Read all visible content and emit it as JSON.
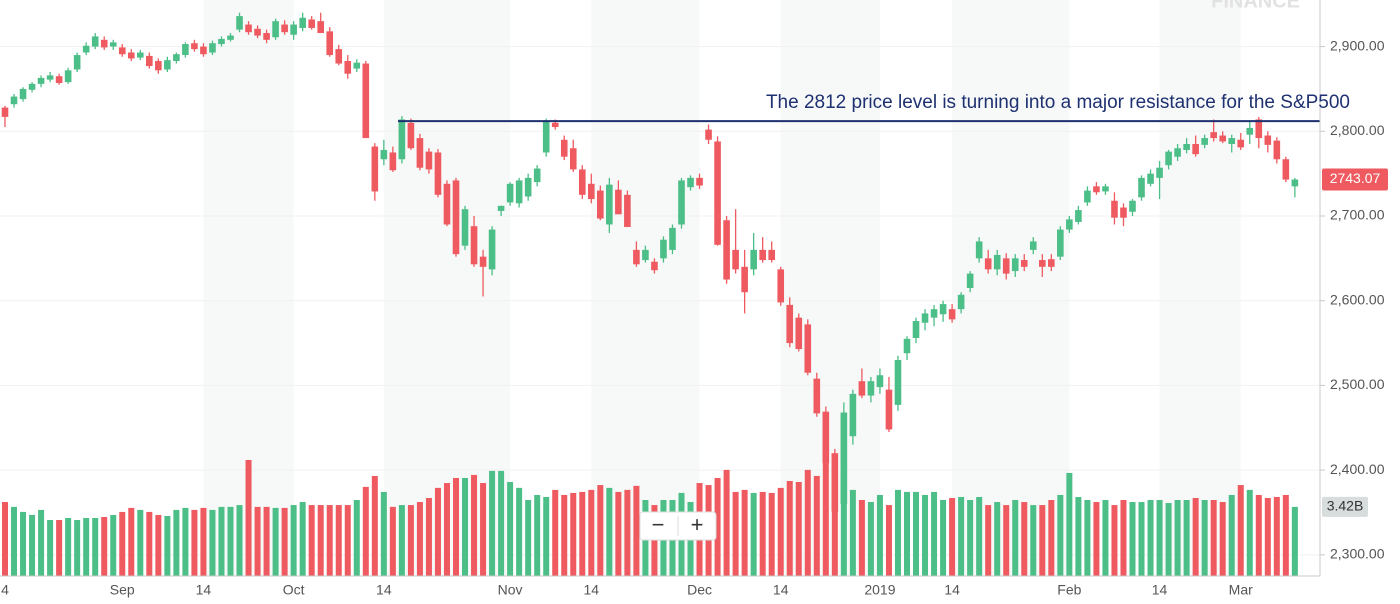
{
  "chart_data": {
    "type": "candlestick",
    "watermark": "FINANCE",
    "annotation": {
      "text": "The 2812 price level is turning into a major resistance for the S&P500",
      "value": 2812
    },
    "categories": [
      "4",
      null,
      null,
      null,
      null,
      null,
      null,
      null,
      null,
      null,
      null,
      null,
      null,
      "Sep",
      null,
      null,
      null,
      null,
      null,
      null,
      null,
      null,
      "14",
      null,
      null,
      null,
      null,
      null,
      null,
      null,
      null,
      null,
      "Oct",
      null,
      null,
      null,
      null,
      null,
      null,
      null,
      null,
      null,
      "14",
      null,
      null,
      null,
      null,
      null,
      null,
      null,
      null,
      null,
      null,
      null,
      null,
      null,
      "Nov",
      null,
      null,
      null,
      null,
      null,
      null,
      null,
      null,
      "14",
      null,
      null,
      null,
      null,
      null,
      null,
      null,
      null,
      null,
      null,
      null,
      "Dec",
      null,
      null,
      null,
      null,
      null,
      null,
      null,
      null,
      "14",
      null,
      null,
      null,
      null,
      null,
      null,
      null,
      null,
      null,
      null,
      "2019",
      null,
      null,
      null,
      null,
      null,
      null,
      null,
      "14",
      null,
      null,
      null,
      null,
      null,
      null,
      null,
      null,
      null,
      null,
      null,
      null,
      "Feb",
      null,
      null,
      null,
      null,
      null,
      null,
      null,
      null,
      null,
      "14",
      null,
      null,
      null,
      null,
      null,
      null,
      null,
      null,
      "Mar",
      null,
      null,
      null,
      null,
      null,
      null
    ],
    "open": [
      2828,
      2832,
      2838,
      2849,
      2856,
      2861,
      2865,
      2858,
      2873,
      2893,
      2900,
      2908,
      2900,
      2899,
      2893,
      2887,
      2889,
      2883,
      2873,
      2883,
      2890,
      2904,
      2900,
      2893,
      2903,
      2908,
      2920,
      2926,
      2921,
      2916,
      2911,
      2926,
      2914,
      2922,
      2932,
      2930,
      2918,
      2897,
      2883,
      2874,
      2880,
      2782,
      2767,
      2775,
      2767,
      2810,
      2792,
      2776,
      2775,
      2738,
      2742,
      2665,
      2688,
      2652,
      2637,
      2706,
      2716,
      2715,
      2723,
      2740,
      2775,
      2810,
      2790,
      2780,
      2755,
      2738,
      2730,
      2690,
      2731,
      2725,
      2660,
      2648,
      2646,
      2650,
      2660,
      2690,
      2734,
      2745,
      2802,
      2788,
      2695,
      2660,
      2640,
      2637,
      2660,
      2660,
      2637,
      2595,
      2580,
      2572,
      2508,
      2469,
      2420,
      2360,
      2440,
      2505,
      2488,
      2498,
      2495,
      2477,
      2538,
      2556,
      2574,
      2580,
      2584,
      2590,
      2590,
      2615,
      2650,
      2650,
      2637,
      2650,
      2635,
      2648,
      2660,
      2648,
      2649,
      2652,
      2684,
      2693,
      2716,
      2735,
      2729,
      2718,
      2710,
      2705,
      2722,
      2738,
      2745,
      2760,
      2770,
      2778,
      2785,
      2784,
      2799,
      2795,
      2785,
      2790,
      2796,
      2814,
      2795,
      2789,
      2767,
      2735
    ],
    "high": [
      2830,
      2844,
      2852,
      2858,
      2866,
      2870,
      2868,
      2875,
      2893,
      2905,
      2916,
      2912,
      2908,
      2903,
      2897,
      2896,
      2893,
      2886,
      2888,
      2893,
      2905,
      2908,
      2904,
      2907,
      2912,
      2916,
      2940,
      2930,
      2925,
      2920,
      2933,
      2931,
      2930,
      2940,
      2936,
      2940,
      2923,
      2902,
      2890,
      2885,
      2883,
      2786,
      2790,
      2782,
      2818,
      2815,
      2797,
      2780,
      2779,
      2742,
      2745,
      2712,
      2700,
      2660,
      2688,
      2712,
      2740,
      2745,
      2750,
      2760,
      2815,
      2814,
      2795,
      2790,
      2760,
      2750,
      2736,
      2745,
      2742,
      2730,
      2670,
      2665,
      2650,
      2676,
      2690,
      2745,
      2748,
      2750,
      2808,
      2794,
      2700,
      2708,
      2660,
      2680,
      2675,
      2670,
      2640,
      2604,
      2585,
      2578,
      2515,
      2475,
      2425,
      2480,
      2495,
      2520,
      2510,
      2520,
      2510,
      2535,
      2558,
      2580,
      2590,
      2595,
      2600,
      2596,
      2610,
      2635,
      2675,
      2660,
      2660,
      2656,
      2655,
      2655,
      2675,
      2655,
      2655,
      2688,
      2700,
      2712,
      2735,
      2740,
      2738,
      2728,
      2715,
      2720,
      2748,
      2755,
      2765,
      2778,
      2785,
      2792,
      2795,
      2796,
      2814,
      2800,
      2796,
      2798,
      2812,
      2817,
      2800,
      2793,
      2770,
      2745
    ],
    "low": [
      2805,
      2828,
      2835,
      2846,
      2852,
      2858,
      2855,
      2856,
      2870,
      2890,
      2897,
      2896,
      2896,
      2888,
      2883,
      2884,
      2874,
      2868,
      2870,
      2880,
      2887,
      2894,
      2888,
      2890,
      2900,
      2906,
      2917,
      2914,
      2910,
      2904,
      2908,
      2914,
      2908,
      2918,
      2920,
      2916,
      2888,
      2878,
      2862,
      2870,
      2792,
      2718,
      2760,
      2752,
      2762,
      2778,
      2754,
      2750,
      2722,
      2688,
      2652,
      2660,
      2640,
      2605,
      2630,
      2700,
      2712,
      2710,
      2718,
      2735,
      2770,
      2802,
      2766,
      2752,
      2720,
      2715,
      2695,
      2680,
      2705,
      2690,
      2640,
      2645,
      2632,
      2645,
      2655,
      2685,
      2730,
      2732,
      2785,
      2665,
      2620,
      2632,
      2585,
      2630,
      2645,
      2645,
      2594,
      2545,
      2540,
      2512,
      2463,
      2395,
      2346,
      2350,
      2430,
      2485,
      2480,
      2490,
      2445,
      2470,
      2530,
      2550,
      2565,
      2570,
      2575,
      2574,
      2585,
      2610,
      2645,
      2632,
      2630,
      2625,
      2628,
      2635,
      2655,
      2628,
      2635,
      2648,
      2680,
      2690,
      2712,
      2725,
      2725,
      2690,
      2688,
      2700,
      2718,
      2735,
      2720,
      2755,
      2765,
      2774,
      2770,
      2780,
      2788,
      2786,
      2775,
      2778,
      2785,
      2780,
      2775,
      2762,
      2740,
      2722
    ],
    "close": [
      2817,
      2841,
      2850,
      2856,
      2863,
      2866,
      2857,
      2872,
      2890,
      2901,
      2912,
      2899,
      2905,
      2891,
      2886,
      2893,
      2877,
      2872,
      2884,
      2891,
      2903,
      2897,
      2891,
      2904,
      2909,
      2913,
      2936,
      2917,
      2913,
      2908,
      2930,
      2917,
      2926,
      2934,
      2922,
      2916,
      2890,
      2880,
      2868,
      2881,
      2792,
      2729,
      2778,
      2754,
      2814,
      2780,
      2757,
      2755,
      2725,
      2690,
      2655,
      2708,
      2643,
      2640,
      2684,
      2712,
      2738,
      2742,
      2745,
      2756,
      2811,
      2805,
      2770,
      2755,
      2725,
      2720,
      2697,
      2737,
      2702,
      2687,
      2643,
      2660,
      2636,
      2672,
      2686,
      2742,
      2745,
      2736,
      2790,
      2666,
      2625,
      2637,
      2610,
      2660,
      2648,
      2648,
      2598,
      2550,
      2543,
      2515,
      2467,
      2408,
      2351,
      2468,
      2490,
      2488,
      2505,
      2512,
      2448,
      2530,
      2555,
      2576,
      2585,
      2590,
      2596,
      2578,
      2607,
      2632,
      2670,
      2637,
      2654,
      2632,
      2650,
      2640,
      2670,
      2640,
      2640,
      2684,
      2696,
      2707,
      2730,
      2728,
      2735,
      2698,
      2698,
      2718,
      2745,
      2750,
      2757,
      2776,
      2780,
      2785,
      2773,
      2792,
      2792,
      2788,
      2792,
      2781,
      2804,
      2792,
      2784,
      2767,
      2743,
      2743.07
    ],
    "volume": {
      "values": [
        3.66,
        3.42,
        3.17,
        3.02,
        3.27,
        2.77,
        2.77,
        2.87,
        2.77,
        2.87,
        2.87,
        2.92,
        3.02,
        3.17,
        3.37,
        3.27,
        3.17,
        3.02,
        2.97,
        3.27,
        3.37,
        3.27,
        3.37,
        3.27,
        3.42,
        3.42,
        3.51,
        5.74,
        3.42,
        3.42,
        3.37,
        3.37,
        3.51,
        3.66,
        3.51,
        3.51,
        3.51,
        3.51,
        3.51,
        3.76,
        4.41,
        4.95,
        4.16,
        3.42,
        3.51,
        3.51,
        3.66,
        3.86,
        4.36,
        4.6,
        4.85,
        4.85,
        5.0,
        4.6,
        5.2,
        5.2,
        4.65,
        4.36,
        3.76,
        4.01,
        3.91,
        4.26,
        4.01,
        4.11,
        4.16,
        4.26,
        4.5,
        4.36,
        4.16,
        4.26,
        4.46,
        3.76,
        3.51,
        3.76,
        3.76,
        4.11,
        3.66,
        4.6,
        4.5,
        4.85,
        5.25,
        4.16,
        4.26,
        4.11,
        4.16,
        4.11,
        4.36,
        4.7,
        4.65,
        5.25,
        4.95,
        5.64,
        5.35,
        4.41,
        4.26,
        3.76,
        3.66,
        4.01,
        3.51,
        4.26,
        4.16,
        4.16,
        4.01,
        4.16,
        3.76,
        3.86,
        3.91,
        3.76,
        3.91,
        3.51,
        3.66,
        3.51,
        3.76,
        3.66,
        3.51,
        3.51,
        3.76,
        4.01,
        5.1,
        3.91,
        3.76,
        3.66,
        3.76,
        3.51,
        3.76,
        3.66,
        3.66,
        3.76,
        3.76,
        3.61,
        3.76,
        3.76,
        3.86,
        3.76,
        3.76,
        3.66,
        4.01,
        4.5,
        4.26,
        4.01,
        3.86,
        3.91,
        4.01,
        3.42
      ],
      "value_labels": [
        null,
        null,
        null,
        null,
        null,
        null,
        null,
        null,
        null,
        null,
        null,
        null,
        null,
        null,
        null,
        null,
        null,
        null,
        null,
        null,
        null,
        null,
        null,
        null,
        null,
        null,
        null,
        null,
        null,
        null,
        null,
        null,
        null,
        null,
        null,
        null,
        null,
        null,
        null,
        null,
        null,
        null,
        null,
        null,
        null,
        null,
        null,
        null,
        null,
        null,
        null,
        null,
        null,
        null,
        null,
        null,
        null,
        null,
        null,
        null,
        null,
        null,
        null,
        null,
        null,
        null,
        null,
        null,
        null,
        null,
        null,
        null,
        null,
        null,
        null,
        null,
        null,
        null,
        null,
        null,
        null,
        null,
        null,
        null,
        null,
        null,
        null,
        null,
        null,
        null,
        null,
        null,
        null,
        null,
        null,
        null,
        null,
        null,
        null,
        null,
        null,
        null,
        null,
        null,
        null,
        null,
        null,
        null,
        null,
        null,
        null,
        null,
        null,
        null,
        null,
        null,
        null,
        null,
        null,
        null,
        null,
        null,
        null,
        null,
        null,
        null,
        null,
        null,
        null,
        null,
        null,
        null,
        null,
        null,
        null,
        null,
        null,
        null,
        null,
        null,
        null,
        null,
        null,
        "3.42B"
      ],
      "ylim": [
        0,
        28.5
      ]
    },
    "up_color": "#4cbe87",
    "down_color": "#ee5a5f",
    "ylim": [
      2275,
      2955
    ],
    "yticks": [
      {
        "value": 2300,
        "label": "2,300.00"
      },
      {
        "value": 2400,
        "label": "2,400.00"
      },
      {
        "value": 2500,
        "label": "2,500.00"
      },
      {
        "value": 2600,
        "label": "2,600.00"
      },
      {
        "value": 2700,
        "label": "2,700.00"
      },
      {
        "value": 2800,
        "label": "2,800.00"
      },
      {
        "value": 2900,
        "label": "2,900.00"
      }
    ],
    "grid": true,
    "zoom_controls": [
      "−",
      "+"
    ]
  }
}
